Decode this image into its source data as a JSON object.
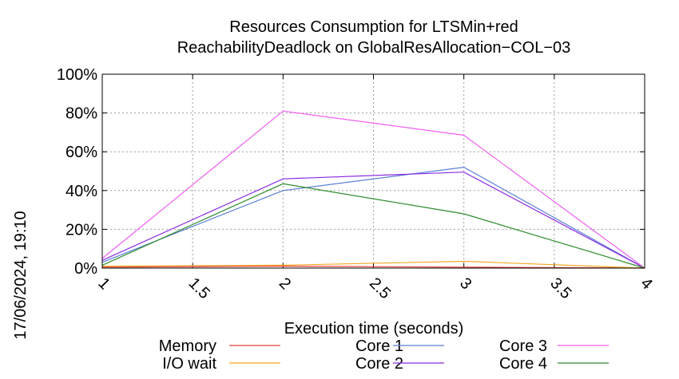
{
  "chart_data": {
    "type": "line",
    "title": "Resources Consumption for LTSMin+red",
    "subtitle": "ReachabilityDeadlock on GlobalResAllocation−COL−03",
    "xlabel": "Execution time (seconds)",
    "ylabel": "",
    "timestamp": "17/06/2024, 19:10",
    "xlim": [
      1,
      4
    ],
    "ylim": [
      0,
      100
    ],
    "x_ticks": [
      "1",
      "1.5",
      "2",
      "2.5",
      "3",
      "3.5",
      "4"
    ],
    "y_ticks": [
      "0%",
      "20%",
      "40%",
      "60%",
      "80%",
      "100%"
    ],
    "grid": true,
    "legend_position": "bottom",
    "series": [
      {
        "name": "Memory",
        "color": "#e8413a",
        "x": [
          1,
          2,
          3,
          4
        ],
        "y": [
          0.5,
          1,
          0.5,
          0
        ]
      },
      {
        "name": "I/O wait",
        "color": "#f5a623",
        "x": [
          1,
          2,
          3,
          4
        ],
        "y": [
          1,
          1.5,
          3.5,
          0
        ]
      },
      {
        "name": "Core 1",
        "color": "#5b7fd6",
        "x": [
          1,
          2,
          3,
          4
        ],
        "y": [
          3,
          40,
          52,
          0
        ]
      },
      {
        "name": "Core 2",
        "color": "#8a2be2",
        "x": [
          1,
          2,
          3,
          4
        ],
        "y": [
          4,
          46,
          49.5,
          0
        ]
      },
      {
        "name": "Core 3",
        "color": "#f05ff0",
        "x": [
          1,
          2,
          3,
          4
        ],
        "y": [
          5,
          81,
          68.5,
          0
        ]
      },
      {
        "name": "Core 4",
        "color": "#2e8b2e",
        "x": [
          1,
          2,
          3,
          4
        ],
        "y": [
          1.5,
          43.5,
          28,
          0
        ]
      }
    ]
  }
}
